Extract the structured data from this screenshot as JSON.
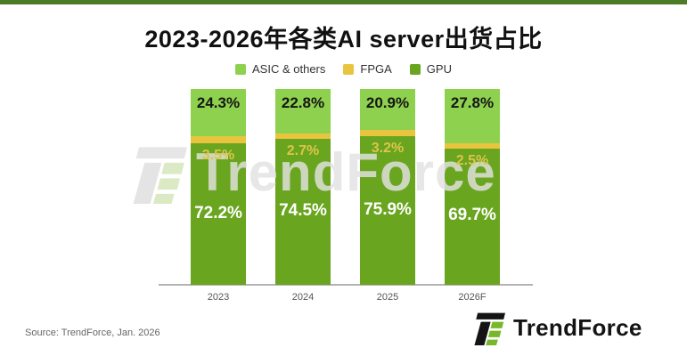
{
  "page": {
    "title": "2023-2026年各类AI server出货占比",
    "source_note": "Source: TrendForce, Jan. 2026",
    "watermark_text": "TrendForce",
    "brand": {
      "logo_text": "TrendForce"
    }
  },
  "colors": {
    "accent_dark_green": "#4c7d24",
    "asic_green": "#8ed14e",
    "fpga_yellow": "#e9c43e",
    "gpu_green": "#69a51f",
    "brand_green": "#76b82a",
    "axis_line": "#b3b3b3"
  },
  "chart_data": {
    "type": "bar",
    "stacked": true,
    "unit": "%",
    "title": "2023-2026年各类AI server出货占比",
    "categories": [
      "2023",
      "2024",
      "2025",
      "2026F"
    ],
    "series": [
      {
        "name": "ASIC & others",
        "color": "#8ed14e",
        "label_color": "#151515",
        "values": [
          24.3,
          22.8,
          20.9,
          27.8
        ]
      },
      {
        "name": "FPGA",
        "color": "#e9c43e",
        "label_color": "#ddc44a",
        "values": [
          3.5,
          2.7,
          3.2,
          2.5
        ]
      },
      {
        "name": "GPU",
        "color": "#69a51f",
        "label_color": "#ffffff",
        "values": [
          72.2,
          74.5,
          75.9,
          69.7
        ]
      }
    ],
    "ylim": [
      0,
      100
    ],
    "legend_position": "top",
    "value_labels": true,
    "grid": false
  }
}
